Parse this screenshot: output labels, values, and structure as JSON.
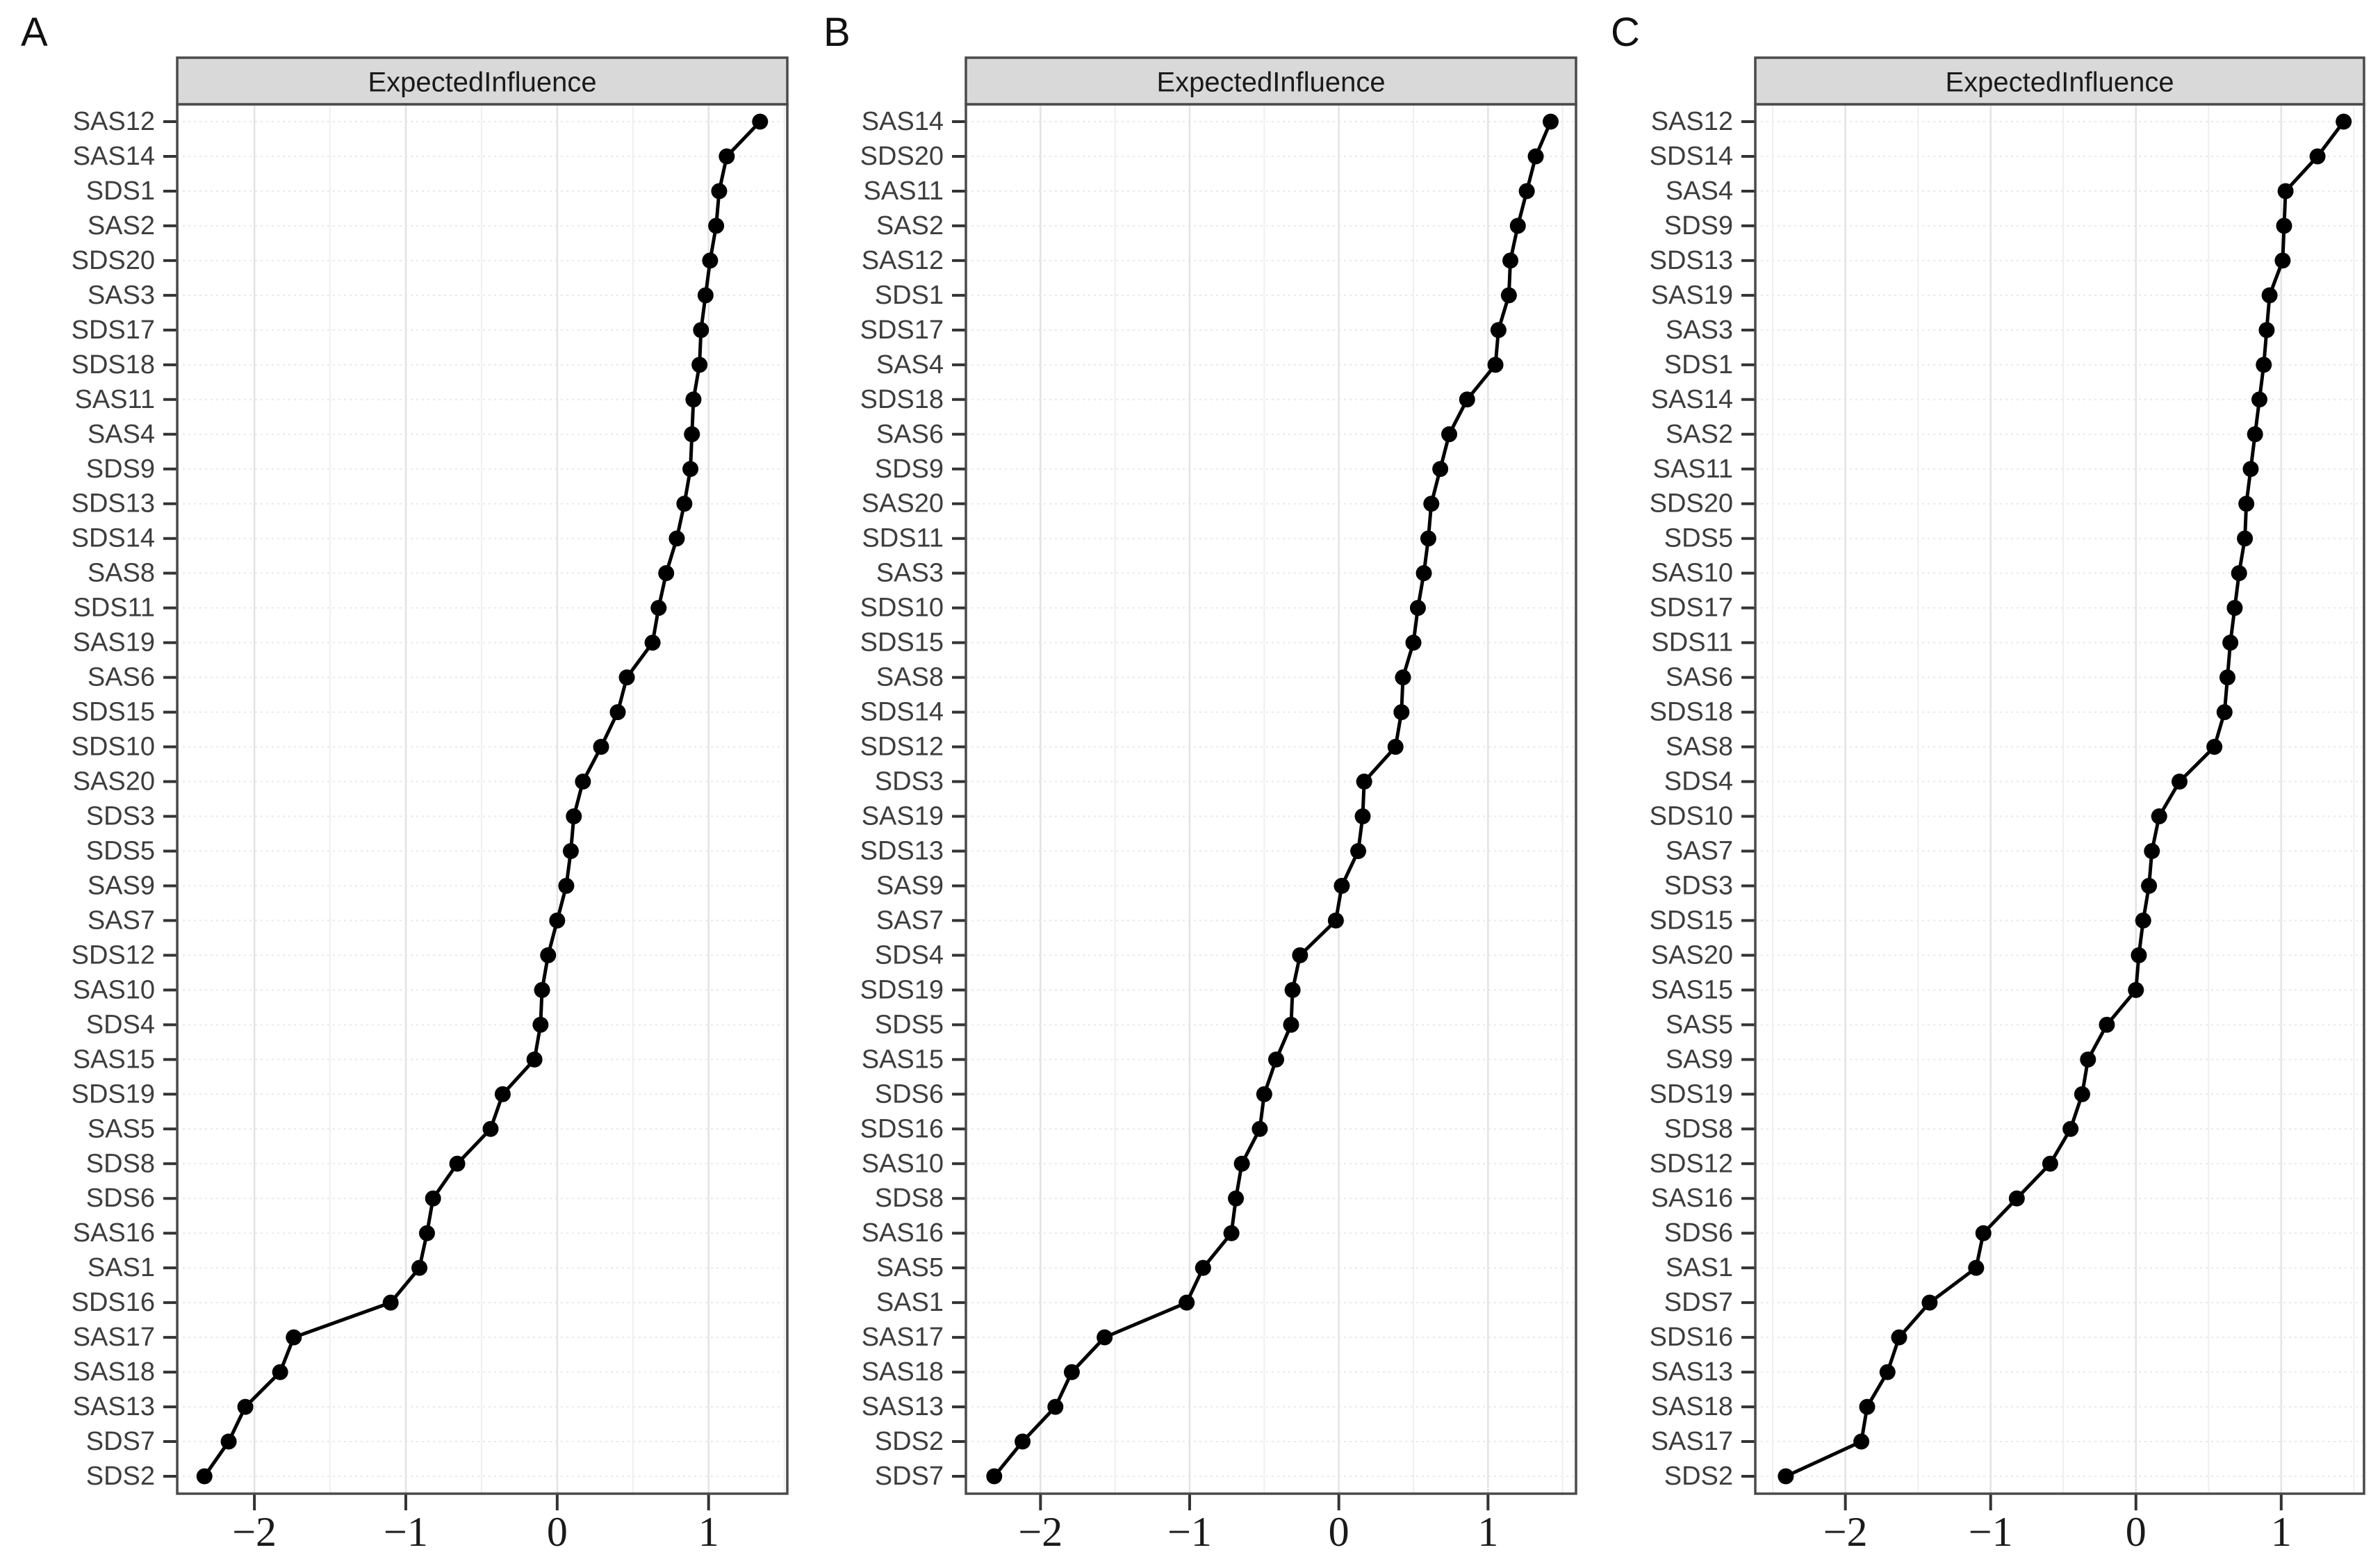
{
  "style": {
    "background": "#ffffff",
    "strip_bg": "#d9d9d9",
    "strip_border": "#4a4a4a",
    "panel_border": "#4a4a4a",
    "grid_major": "#e3e3e3",
    "grid_minor": "#efefef",
    "row_grid": "#e9e9e9",
    "line_color": "#000000",
    "point_color": "#000000",
    "y_label_color": "#3d3d3d",
    "x_label_color": "#1a1a1a",
    "header_color": "#1a1a1a",
    "letter_color": "#111111"
  },
  "panel_letters": [
    "A",
    "B",
    "C"
  ],
  "chart_data": [
    {
      "type": "line",
      "panel": "A",
      "title": "ExpectedInfluence",
      "orientation": "horizontal",
      "xlabel": "",
      "ylabel": "",
      "legend": "none",
      "grid": "on",
      "xticks": [
        -2,
        -1,
        0,
        1
      ],
      "xlim": [
        -2.51,
        1.52
      ],
      "categories": [
        "SAS12",
        "SAS14",
        "SDS1",
        "SAS2",
        "SDS20",
        "SAS3",
        "SDS17",
        "SDS18",
        "SAS11",
        "SAS4",
        "SDS9",
        "SDS13",
        "SDS14",
        "SAS8",
        "SDS11",
        "SAS19",
        "SAS6",
        "SDS15",
        "SDS10",
        "SAS20",
        "SDS3",
        "SDS5",
        "SAS9",
        "SAS7",
        "SDS12",
        "SAS10",
        "SDS4",
        "SAS15",
        "SDS19",
        "SAS5",
        "SDS8",
        "SDS6",
        "SAS16",
        "SAS1",
        "SDS16",
        "SAS17",
        "SAS18",
        "SAS13",
        "SDS7",
        "SDS2"
      ],
      "values": [
        1.34,
        1.12,
        1.07,
        1.05,
        1.01,
        0.98,
        0.95,
        0.94,
        0.9,
        0.89,
        0.88,
        0.84,
        0.79,
        0.72,
        0.67,
        0.63,
        0.46,
        0.4,
        0.29,
        0.17,
        0.11,
        0.09,
        0.06,
        0.0,
        -0.06,
        -0.1,
        -0.11,
        -0.15,
        -0.36,
        -0.44,
        -0.66,
        -0.82,
        -0.86,
        -0.91,
        -1.1,
        -1.74,
        -1.83,
        -2.06,
        -2.17,
        -2.33
      ]
    },
    {
      "type": "line",
      "panel": "B",
      "title": "ExpectedInfluence",
      "orientation": "horizontal",
      "xlabel": "",
      "ylabel": "",
      "legend": "none",
      "grid": "on",
      "xticks": [
        -2,
        -1,
        0,
        1
      ],
      "xlim": [
        -2.5,
        1.59
      ],
      "categories": [
        "SAS14",
        "SDS20",
        "SAS11",
        "SAS2",
        "SAS12",
        "SDS1",
        "SDS17",
        "SAS4",
        "SDS18",
        "SAS6",
        "SDS9",
        "SAS20",
        "SDS11",
        "SAS3",
        "SDS10",
        "SDS15",
        "SAS8",
        "SDS14",
        "SDS12",
        "SDS3",
        "SAS19",
        "SDS13",
        "SAS9",
        "SAS7",
        "SDS4",
        "SDS19",
        "SDS5",
        "SAS15",
        "SDS6",
        "SDS16",
        "SAS10",
        "SDS8",
        "SAS16",
        "SAS5",
        "SAS1",
        "SAS17",
        "SAS18",
        "SAS13",
        "SDS2",
        "SDS7"
      ],
      "values": [
        1.42,
        1.32,
        1.26,
        1.2,
        1.15,
        1.14,
        1.07,
        1.05,
        0.86,
        0.74,
        0.68,
        0.62,
        0.6,
        0.57,
        0.53,
        0.5,
        0.43,
        0.42,
        0.38,
        0.17,
        0.16,
        0.13,
        0.02,
        -0.02,
        -0.26,
        -0.31,
        -0.32,
        -0.42,
        -0.5,
        -0.53,
        -0.65,
        -0.69,
        -0.72,
        -0.91,
        -1.02,
        -1.57,
        -1.79,
        -1.9,
        -2.12,
        -2.31
      ]
    },
    {
      "type": "line",
      "panel": "C",
      "title": "ExpectedInfluence",
      "orientation": "horizontal",
      "xlabel": "",
      "ylabel": "",
      "legend": "none",
      "grid": "on",
      "xticks": [
        -2,
        -1,
        0,
        1
      ],
      "xlim": [
        -2.62,
        1.57
      ],
      "categories": [
        "SAS12",
        "SDS14",
        "SAS4",
        "SDS9",
        "SDS13",
        "SAS19",
        "SAS3",
        "SDS1",
        "SAS14",
        "SAS2",
        "SAS11",
        "SDS20",
        "SDS5",
        "SAS10",
        "SDS17",
        "SDS11",
        "SAS6",
        "SDS18",
        "SAS8",
        "SDS4",
        "SDS10",
        "SAS7",
        "SDS3",
        "SDS15",
        "SAS20",
        "SAS15",
        "SAS5",
        "SAS9",
        "SDS19",
        "SDS8",
        "SDS12",
        "SAS16",
        "SDS6",
        "SAS1",
        "SDS7",
        "SDS16",
        "SAS13",
        "SAS18",
        "SAS17",
        "SDS2"
      ],
      "values": [
        1.43,
        1.25,
        1.03,
        1.02,
        1.01,
        0.92,
        0.9,
        0.88,
        0.85,
        0.82,
        0.79,
        0.76,
        0.75,
        0.71,
        0.68,
        0.65,
        0.63,
        0.61,
        0.54,
        0.3,
        0.16,
        0.11,
        0.09,
        0.05,
        0.02,
        0.0,
        -0.2,
        -0.33,
        -0.37,
        -0.45,
        -0.59,
        -0.82,
        -1.05,
        -1.1,
        -1.42,
        -1.63,
        -1.71,
        -1.85,
        -1.89,
        -2.41
      ]
    }
  ]
}
